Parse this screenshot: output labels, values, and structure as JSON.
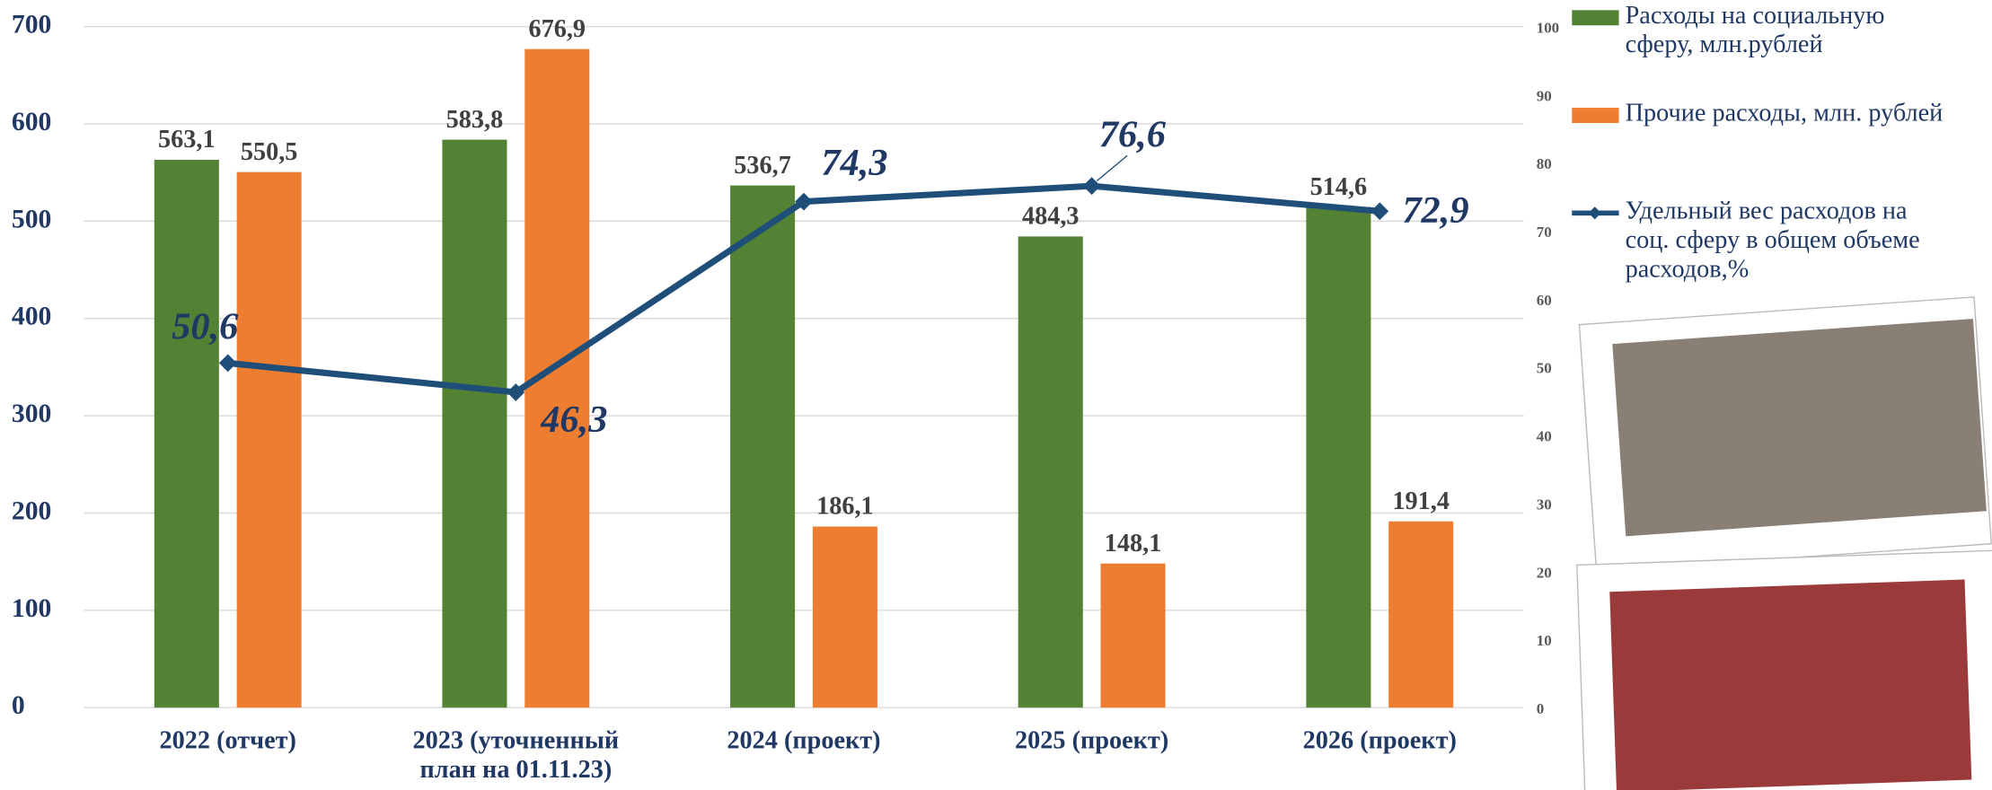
{
  "chart_data": {
    "type": "bar-line",
    "categories": [
      "2022 (отчет)",
      "2023 (уточненный\nплан на 01.11.23)",
      "2024 (проект)",
      "2025 (проект)",
      "2026 (проект)"
    ],
    "series": [
      {
        "name": "Расходы на социальную\nсферу, млн.рублей",
        "color": "#548235",
        "values": [
          563.1,
          583.8,
          536.7,
          484.3,
          514.6
        ],
        "value_labels": [
          "563,1",
          "583,8",
          "536,7",
          "484,3",
          "514,6"
        ]
      },
      {
        "name": "Прочие расходы, млн. рублей",
        "color": "#ed7d31",
        "values": [
          550.5,
          676.9,
          186.1,
          148.1,
          191.4
        ],
        "value_labels": [
          "550,5",
          "676,9",
          "186,1",
          "148,1",
          "191,4"
        ]
      },
      {
        "name": "Удельный вес расходов на\nсоц. сферу в общем объеме\nрасходов,%",
        "color": "#1f4e79",
        "type": "line",
        "axis": "y2",
        "values": [
          50.6,
          46.3,
          74.3,
          76.6,
          72.9
        ],
        "value_labels": [
          "50,6",
          "46,3",
          "74,3",
          "76,6",
          "72,9"
        ]
      }
    ],
    "ylim": [
      0,
      700
    ],
    "yticks": [
      0,
      100,
      200,
      300,
      400,
      500,
      600,
      700
    ],
    "y2lim": [
      0,
      100
    ],
    "y2ticks": [
      0,
      10,
      20,
      30,
      40,
      50,
      60,
      70,
      80,
      90,
      100
    ],
    "grid": true
  }
}
